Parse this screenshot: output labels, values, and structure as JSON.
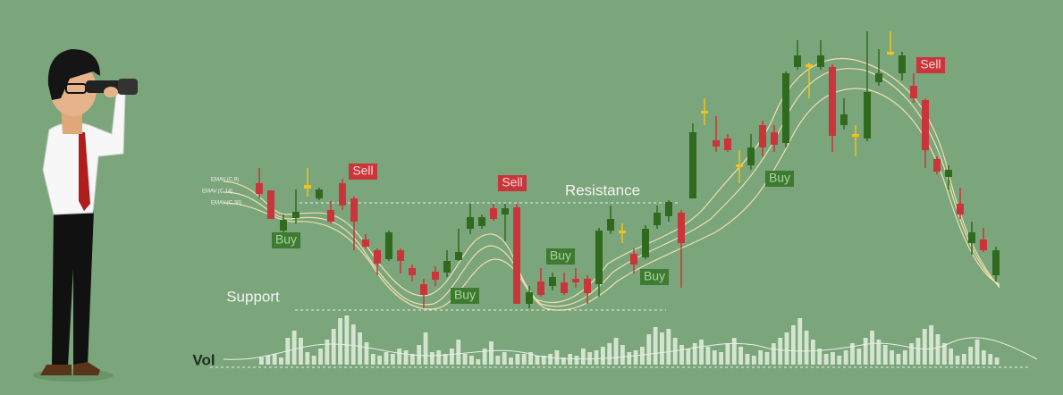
{
  "indicators": [
    "EMAV.(C,9)",
    "EMAV.(C,14)",
    "EMAV.(C,30)"
  ],
  "signals": {
    "sell": [
      "Sell",
      "Sell",
      "Sell"
    ],
    "buy": [
      "Buy",
      "Buy",
      "Buy",
      "Buy",
      "Buy"
    ]
  },
  "levels": {
    "resistance": "Resistance",
    "support": "Support"
  },
  "volume_label": "Vol"
}
